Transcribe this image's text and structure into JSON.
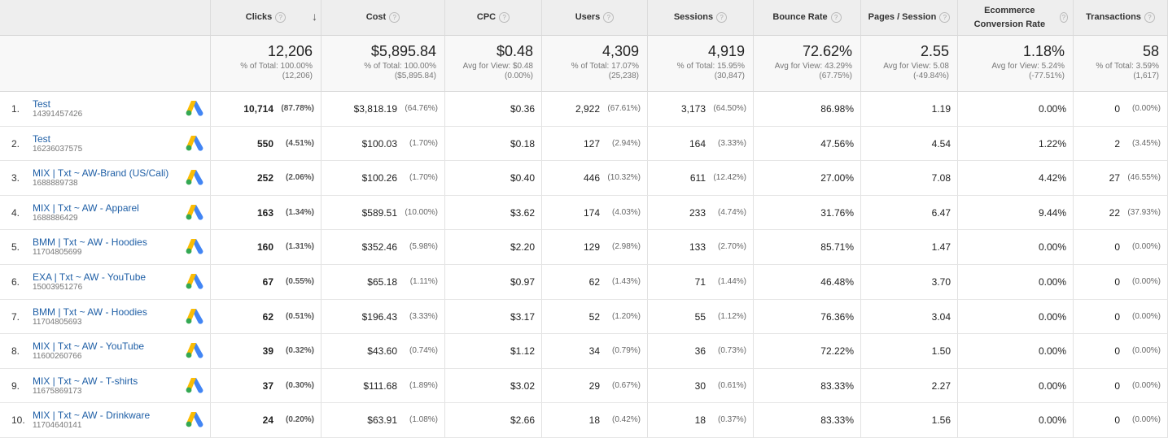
{
  "header": {
    "columns": [
      "Clicks",
      "Cost",
      "CPC",
      "Users",
      "Sessions",
      "Bounce Rate",
      "Pages / Session",
      "Ecommerce Conversion Rate",
      "Transactions"
    ]
  },
  "totals": [
    [
      "12,206",
      "% of Total: 100.00%",
      "(12,206)"
    ],
    [
      "$5,895.84",
      "% of Total: 100.00%",
      "($5,895.84)"
    ],
    [
      "$0.48",
      "Avg for View: $0.48",
      "(0.00%)"
    ],
    [
      "4,309",
      "% of Total: 17.07%",
      "(25,238)"
    ],
    [
      "4,919",
      "% of Total: 15.95%",
      "(30,847)"
    ],
    [
      "72.62%",
      "Avg for View: 43.29%",
      "(67.75%)"
    ],
    [
      "2.55",
      "Avg for View: 5.08",
      "(-49.84%)"
    ],
    [
      "1.18%",
      "Avg for View: 5.24%",
      "(-77.51%)"
    ],
    [
      "58",
      "% of Total: 3.59%",
      "(1,617)"
    ]
  ],
  "rows": [
    {
      "index": "1.",
      "name": "Test",
      "id": "14391457426",
      "cells": [
        [
          "10,714",
          "(87.78%)"
        ],
        [
          "$3,818.19",
          "(64.76%)"
        ],
        [
          "$0.36"
        ],
        [
          "2,922",
          "(67.61%)"
        ],
        [
          "3,173",
          "(64.50%)"
        ],
        [
          "86.98%"
        ],
        [
          "1.19"
        ],
        [
          "0.00%"
        ],
        [
          "0",
          "(0.00%)"
        ]
      ]
    },
    {
      "index": "2.",
      "name": "Test",
      "id": "16236037575",
      "cells": [
        [
          "550",
          "(4.51%)"
        ],
        [
          "$100.03",
          "(1.70%)"
        ],
        [
          "$0.18"
        ],
        [
          "127",
          "(2.94%)"
        ],
        [
          "164",
          "(3.33%)"
        ],
        [
          "47.56%"
        ],
        [
          "4.54"
        ],
        [
          "1.22%"
        ],
        [
          "2",
          "(3.45%)"
        ]
      ]
    },
    {
      "index": "3.",
      "name": "MIX | Txt ~ AW-Brand (US/Cali)",
      "id": "1688889738",
      "cells": [
        [
          "252",
          "(2.06%)"
        ],
        [
          "$100.26",
          "(1.70%)"
        ],
        [
          "$0.40"
        ],
        [
          "446",
          "(10.32%)"
        ],
        [
          "611",
          "(12.42%)"
        ],
        [
          "27.00%"
        ],
        [
          "7.08"
        ],
        [
          "4.42%"
        ],
        [
          "27",
          "(46.55%)"
        ]
      ]
    },
    {
      "index": "4.",
      "name": "MIX | Txt ~ AW - Apparel",
      "id": "1688886429",
      "cells": [
        [
          "163",
          "(1.34%)"
        ],
        [
          "$589.51",
          "(10.00%)"
        ],
        [
          "$3.62"
        ],
        [
          "174",
          "(4.03%)"
        ],
        [
          "233",
          "(4.74%)"
        ],
        [
          "31.76%"
        ],
        [
          "6.47"
        ],
        [
          "9.44%"
        ],
        [
          "22",
          "(37.93%)"
        ]
      ]
    },
    {
      "index": "5.",
      "name": "BMM | Txt ~ AW - Hoodies",
      "id": "11704805699",
      "cells": [
        [
          "160",
          "(1.31%)"
        ],
        [
          "$352.46",
          "(5.98%)"
        ],
        [
          "$2.20"
        ],
        [
          "129",
          "(2.98%)"
        ],
        [
          "133",
          "(2.70%)"
        ],
        [
          "85.71%"
        ],
        [
          "1.47"
        ],
        [
          "0.00%"
        ],
        [
          "0",
          "(0.00%)"
        ]
      ]
    },
    {
      "index": "6.",
      "name": "EXA | Txt ~ AW - YouTube",
      "id": "15003951276",
      "cells": [
        [
          "67",
          "(0.55%)"
        ],
        [
          "$65.18",
          "(1.11%)"
        ],
        [
          "$0.97"
        ],
        [
          "62",
          "(1.43%)"
        ],
        [
          "71",
          "(1.44%)"
        ],
        [
          "46.48%"
        ],
        [
          "3.70"
        ],
        [
          "0.00%"
        ],
        [
          "0",
          "(0.00%)"
        ]
      ]
    },
    {
      "index": "7.",
      "name": "BMM | Txt ~ AW - Hoodies",
      "id": "11704805693",
      "cells": [
        [
          "62",
          "(0.51%)"
        ],
        [
          "$196.43",
          "(3.33%)"
        ],
        [
          "$3.17"
        ],
        [
          "52",
          "(1.20%)"
        ],
        [
          "55",
          "(1.12%)"
        ],
        [
          "76.36%"
        ],
        [
          "3.04"
        ],
        [
          "0.00%"
        ],
        [
          "0",
          "(0.00%)"
        ]
      ]
    },
    {
      "index": "8.",
      "name": "MIX | Txt ~ AW - YouTube",
      "id": "11600260766",
      "cells": [
        [
          "39",
          "(0.32%)"
        ],
        [
          "$43.60",
          "(0.74%)"
        ],
        [
          "$1.12"
        ],
        [
          "34",
          "(0.79%)"
        ],
        [
          "36",
          "(0.73%)"
        ],
        [
          "72.22%"
        ],
        [
          "1.50"
        ],
        [
          "0.00%"
        ],
        [
          "0",
          "(0.00%)"
        ]
      ]
    },
    {
      "index": "9.",
      "name": "MIX | Txt ~ AW - T-shirts",
      "id": "11675869173",
      "cells": [
        [
          "37",
          "(0.30%)"
        ],
        [
          "$111.68",
          "(1.89%)"
        ],
        [
          "$3.02"
        ],
        [
          "29",
          "(0.67%)"
        ],
        [
          "30",
          "(0.61%)"
        ],
        [
          "83.33%"
        ],
        [
          "2.27"
        ],
        [
          "0.00%"
        ],
        [
          "0",
          "(0.00%)"
        ]
      ]
    },
    {
      "index": "10.",
      "name": "MIX | Txt ~ AW - Drinkware",
      "id": "11704640141",
      "cells": [
        [
          "24",
          "(0.20%)"
        ],
        [
          "$63.91",
          "(1.08%)"
        ],
        [
          "$2.66"
        ],
        [
          "18",
          "(0.42%)"
        ],
        [
          "18",
          "(0.37%)"
        ],
        [
          "83.33%"
        ],
        [
          "1.56"
        ],
        [
          "0.00%"
        ],
        [
          "0",
          "(0.00%)"
        ]
      ]
    }
  ]
}
